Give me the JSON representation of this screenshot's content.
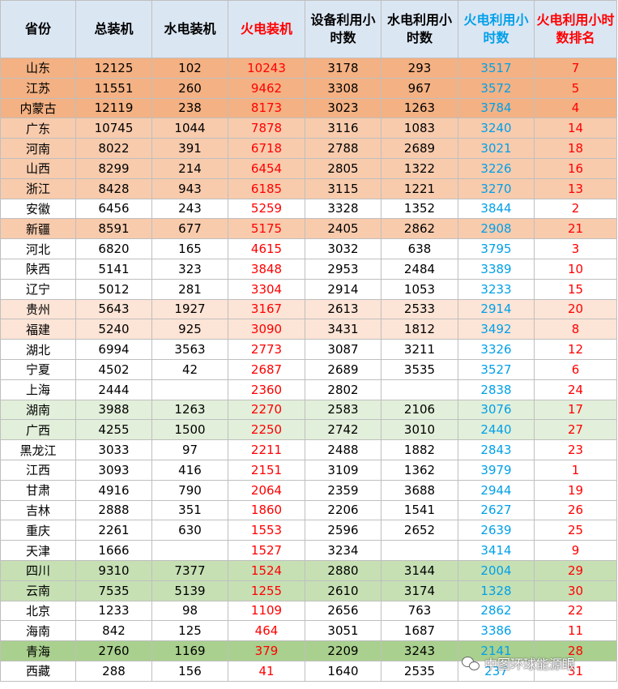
{
  "headers": [
    {
      "text": "省份",
      "color": "#000000"
    },
    {
      "text": "总装机",
      "color": "#000000"
    },
    {
      "text": "水电装机",
      "color": "#000000"
    },
    {
      "text": "火电装机",
      "color": "#ff0000"
    },
    {
      "text": "设备利用小时数",
      "color": "#000000"
    },
    {
      "text": "水电利用小时数",
      "color": "#000000"
    },
    {
      "text": "火电利用小时数",
      "color": "#00a0e9"
    },
    {
      "text": "火电利用小时数排名",
      "color": "#ff0000"
    }
  ],
  "rows": [
    {
      "bg": "#f4b183",
      "cells": [
        "山东",
        "12125",
        "102",
        "10243",
        "3178",
        "293",
        "3517",
        "7"
      ]
    },
    {
      "bg": "#f4b183",
      "cells": [
        "江苏",
        "11551",
        "260",
        "9462",
        "3308",
        "967",
        "3572",
        "5"
      ]
    },
    {
      "bg": "#f4b183",
      "cells": [
        "内蒙古",
        "12119",
        "238",
        "8173",
        "3023",
        "1263",
        "3784",
        "4"
      ]
    },
    {
      "bg": "#f8cbad",
      "cells": [
        "广东",
        "10745",
        "1044",
        "7878",
        "3116",
        "1083",
        "3240",
        "14"
      ]
    },
    {
      "bg": "#f8cbad",
      "cells": [
        "河南",
        "8022",
        "391",
        "6718",
        "2788",
        "2689",
        "3021",
        "18"
      ]
    },
    {
      "bg": "#f8cbad",
      "cells": [
        "山西",
        "8299",
        "214",
        "6454",
        "2805",
        "1322",
        "3226",
        "16"
      ]
    },
    {
      "bg": "#f8cbad",
      "cells": [
        "浙江",
        "8428",
        "943",
        "6185",
        "3115",
        "1221",
        "3270",
        "13"
      ]
    },
    {
      "bg": "#ffffff",
      "cells": [
        "安徽",
        "6456",
        "243",
        "5259",
        "3328",
        "1352",
        "3844",
        "2"
      ]
    },
    {
      "bg": "#f8cbad",
      "cells": [
        "新疆",
        "8591",
        "677",
        "5175",
        "2405",
        "2862",
        "2908",
        "21"
      ]
    },
    {
      "bg": "#ffffff",
      "cells": [
        "河北",
        "6820",
        "165",
        "4615",
        "3032",
        "638",
        "3795",
        "3"
      ]
    },
    {
      "bg": "#ffffff",
      "cells": [
        "陕西",
        "5141",
        "323",
        "3848",
        "2953",
        "2484",
        "3389",
        "10"
      ]
    },
    {
      "bg": "#ffffff",
      "cells": [
        "辽宁",
        "5012",
        "281",
        "3304",
        "2914",
        "1053",
        "3233",
        "15"
      ]
    },
    {
      "bg": "#fce4d6",
      "cells": [
        "贵州",
        "5643",
        "1927",
        "3167",
        "2613",
        "2533",
        "2914",
        "20"
      ]
    },
    {
      "bg": "#fce4d6",
      "cells": [
        "福建",
        "5240",
        "925",
        "3090",
        "3431",
        "1812",
        "3492",
        "8"
      ]
    },
    {
      "bg": "#ffffff",
      "cells": [
        "湖北",
        "6994",
        "3563",
        "2773",
        "3087",
        "3211",
        "3326",
        "12"
      ]
    },
    {
      "bg": "#ffffff",
      "cells": [
        "宁夏",
        "4502",
        "42",
        "2687",
        "2689",
        "3535",
        "3527",
        "6"
      ]
    },
    {
      "bg": "#ffffff",
      "cells": [
        "上海",
        "2444",
        "",
        "2360",
        "2802",
        "",
        "2838",
        "24"
      ]
    },
    {
      "bg": "#e2efda",
      "cells": [
        "湖南",
        "3988",
        "1263",
        "2270",
        "2583",
        "2106",
        "3076",
        "17"
      ]
    },
    {
      "bg": "#e2efda",
      "cells": [
        "广西",
        "4255",
        "1500",
        "2250",
        "2742",
        "3010",
        "2440",
        "27"
      ]
    },
    {
      "bg": "#ffffff",
      "cells": [
        "黑龙江",
        "3033",
        "97",
        "2211",
        "2488",
        "1882",
        "2843",
        "23"
      ]
    },
    {
      "bg": "#ffffff",
      "cells": [
        "江西",
        "3093",
        "416",
        "2151",
        "3109",
        "1362",
        "3979",
        "1"
      ]
    },
    {
      "bg": "#ffffff",
      "cells": [
        "甘肃",
        "4916",
        "790",
        "2064",
        "2359",
        "3688",
        "2944",
        "19"
      ]
    },
    {
      "bg": "#ffffff",
      "cells": [
        "吉林",
        "2888",
        "351",
        "1860",
        "2206",
        "1541",
        "2627",
        "26"
      ]
    },
    {
      "bg": "#ffffff",
      "cells": [
        "重庆",
        "2261",
        "630",
        "1553",
        "2596",
        "2652",
        "2639",
        "25"
      ]
    },
    {
      "bg": "#ffffff",
      "cells": [
        "天津",
        "1666",
        "",
        "1527",
        "3234",
        "",
        "3414",
        "9"
      ]
    },
    {
      "bg": "#c6e0b4",
      "cells": [
        "四川",
        "9310",
        "7377",
        "1524",
        "2880",
        "3144",
        "2004",
        "29"
      ]
    },
    {
      "bg": "#c6e0b4",
      "cells": [
        "云南",
        "7535",
        "5139",
        "1255",
        "2610",
        "3174",
        "1328",
        "30"
      ]
    },
    {
      "bg": "#ffffff",
      "cells": [
        "北京",
        "1233",
        "98",
        "1109",
        "2656",
        "763",
        "2862",
        "22"
      ]
    },
    {
      "bg": "#ffffff",
      "cells": [
        "海南",
        "842",
        "125",
        "464",
        "3051",
        "1687",
        "3386",
        "11"
      ]
    },
    {
      "bg": "#a9d08e",
      "cells": [
        "青海",
        "2760",
        "1169",
        "379",
        "2209",
        "3243",
        "2141",
        "28"
      ]
    },
    {
      "bg": "#ffffff",
      "cells": [
        "西藏",
        "288",
        "156",
        "41",
        "1640",
        "2535",
        "237",
        "31"
      ]
    }
  ],
  "column_colors": [
    "#000000",
    "#000000",
    "#000000",
    "#ff0000",
    "#000000",
    "#000000",
    "#00a0e9",
    "#ff0000"
  ],
  "watermark": {
    "text": "中图环球能源眼",
    "icon": "wechat-icon"
  }
}
